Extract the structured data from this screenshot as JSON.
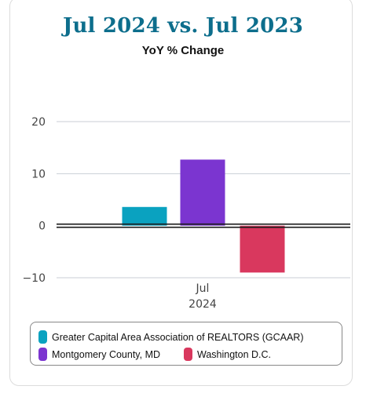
{
  "header": {
    "title": "Jul 2024 vs. Jul 2023",
    "subtitle": "YoY % Change"
  },
  "chart_data": {
    "type": "bar",
    "title": "Jul 2024 vs. Jul 2023",
    "subtitle": "YoY % Change",
    "categories": [
      "Jul 2024"
    ],
    "x_tick_label_lines": [
      "Jul",
      "2024"
    ],
    "ylim": [
      -10,
      20
    ],
    "yticks": [
      20,
      10,
      0,
      -10
    ],
    "ytick_labels": [
      "20",
      "10",
      "0",
      "−10"
    ],
    "grid": true,
    "legend_position": "bottom",
    "series": [
      {
        "name": "Greater Capital Area Association of REALTORS (GCAAR)",
        "values": [
          3.6
        ],
        "color": "#0aa2c0"
      },
      {
        "name": "Montgomery County, MD",
        "values": [
          12.7
        ],
        "color": "#7b35d0"
      },
      {
        "name": "Washington D.C.",
        "values": [
          -9.0
        ],
        "color": "#d9385e"
      }
    ]
  }
}
